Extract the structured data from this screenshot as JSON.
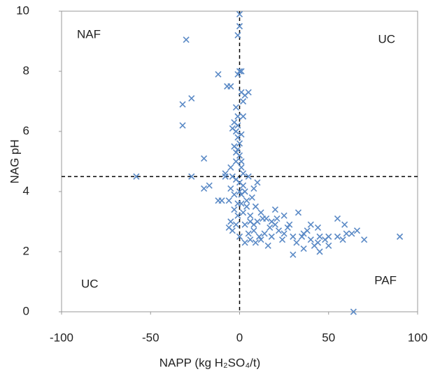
{
  "chart_data": {
    "type": "scatter",
    "x_label": "NAPP (kg H₂SO₄/t)",
    "y_label": "NAG pH",
    "annotations": [
      "NAF",
      "UC",
      "UC",
      "PAF"
    ],
    "xlim": [
      -100,
      100
    ],
    "xticks": [
      -100,
      -50,
      0,
      50,
      100
    ],
    "ylim": [
      0,
      10
    ],
    "yticks": [
      0,
      2,
      4,
      6,
      8,
      10
    ],
    "vlines": [
      0
    ],
    "hlines": [
      4.5
    ],
    "color": "#5b8ac6",
    "marker": "x",
    "x": [
      -30,
      -32,
      -32,
      -27,
      -58,
      -27,
      -20,
      -17,
      -20,
      -12,
      -7,
      -5,
      0,
      0,
      -1,
      0,
      1,
      -1,
      5,
      3,
      2,
      -2,
      -1,
      -3,
      -4,
      -2,
      -1,
      0,
      -3,
      -2,
      0,
      1,
      -5,
      -8,
      -4,
      -2,
      0,
      2,
      -10,
      -12,
      -6,
      -3,
      1,
      3,
      5,
      8,
      10,
      -8,
      -3,
      -1,
      2,
      4,
      6,
      -5,
      -6,
      -4,
      -2,
      0,
      3,
      5,
      8,
      10,
      12,
      15,
      18,
      20,
      22,
      25,
      27,
      30,
      32,
      35,
      38,
      40,
      42,
      45,
      48,
      50,
      55,
      58,
      60,
      63,
      66,
      70,
      90,
      64,
      45,
      30,
      12,
      14,
      17,
      8,
      3,
      6,
      20,
      25,
      33,
      36,
      40,
      44,
      55,
      59,
      21,
      11,
      18,
      7,
      9,
      13,
      2,
      1,
      -1,
      1,
      -1,
      -2,
      1,
      2,
      0,
      -1,
      1,
      4,
      -5,
      28,
      24,
      16,
      9,
      36,
      50,
      44,
      6
    ],
    "values": [
      9.05,
      6.9,
      6.2,
      7.1,
      4.5,
      4.5,
      4.1,
      4.2,
      5.1,
      7.9,
      7.5,
      7.5,
      9.9,
      9.5,
      9.2,
      8.0,
      8.0,
      7.9,
      7.3,
      7.2,
      7.0,
      6.8,
      6.5,
      6.3,
      6.1,
      6.0,
      5.8,
      5.6,
      5.5,
      5.3,
      5.2,
      5.0,
      4.8,
      4.6,
      4.5,
      4.4,
      4.3,
      4.2,
      3.7,
      3.7,
      3.7,
      3.9,
      3.9,
      4.0,
      4.5,
      4.1,
      4.3,
      4.5,
      3.4,
      3.2,
      3.3,
      3.5,
      3.2,
      3.0,
      2.8,
      2.7,
      2.9,
      2.5,
      2.3,
      2.6,
      2.9,
      3.0,
      3.3,
      3.1,
      3.0,
      2.9,
      2.7,
      2.6,
      2.8,
      2.5,
      2.3,
      2.5,
      2.7,
      2.4,
      2.2,
      2.5,
      2.4,
      2.5,
      2.5,
      2.4,
      2.6,
      2.6,
      2.7,
      2.4,
      2.5,
      0.0,
      2.0,
      1.9,
      2.4,
      2.6,
      2.8,
      2.7,
      2.9,
      3.0,
      3.4,
      3.2,
      3.3,
      2.1,
      2.9,
      2.8,
      3.1,
      2.9,
      3.1,
      2.5,
      2.5,
      3.8,
      3.5,
      3.1,
      6.5,
      7.3,
      6.2,
      5.9,
      5.4,
      5.0,
      4.8,
      4.6,
      4.0,
      3.6,
      3.6,
      3.7,
      4.1,
      2.9,
      2.4,
      2.2,
      2.3,
      2.6,
      2.2,
      2.3,
      2.4
    ]
  }
}
